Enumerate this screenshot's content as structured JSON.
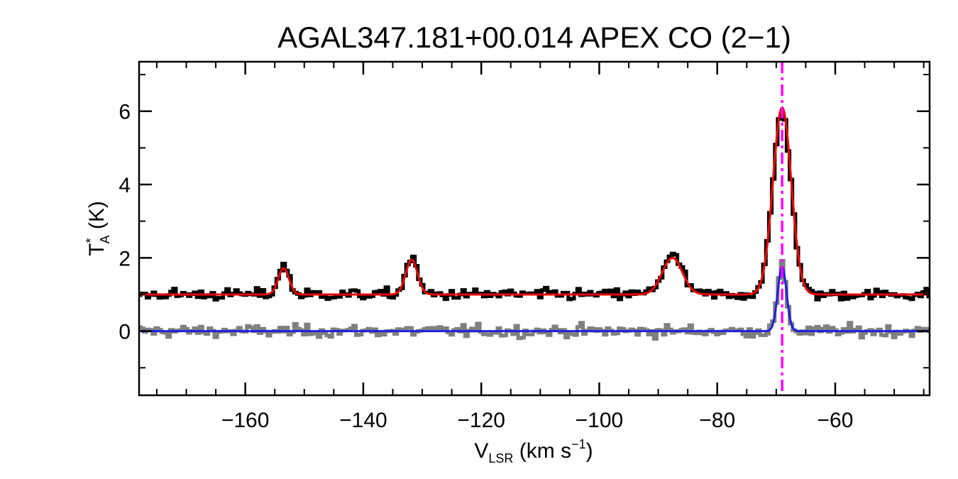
{
  "chart_data": {
    "type": "line",
    "title": "AGAL347.181+00.014  APEX CO (2−1)",
    "xlabel": {
      "main": "V",
      "sub": "LSR",
      "rest": " (km s",
      "sup": "−1",
      "end": ")"
    },
    "ylabel": {
      "main": "T",
      "sup": "*",
      "sub": "A",
      "rest": " (K)"
    },
    "xlim": [
      -178,
      -44
    ],
    "ylim": [
      -1.75,
      7.35
    ],
    "xticks": [
      -160,
      -140,
      -120,
      -100,
      -80,
      -60
    ],
    "xtick_labels": [
      "−160",
      "−140",
      "−120",
      "−100",
      "−80",
      "−60"
    ],
    "xminor_step": 5,
    "yticks": [
      0,
      2,
      4,
      6
    ],
    "ytick_labels": [
      "0",
      "2",
      "4",
      "6"
    ],
    "yminor_step": 1,
    "colors": {
      "observed": "#000000",
      "residual": "#808080",
      "total_fit": "#ee0000",
      "selected_component": "#2020dd",
      "velocity_marker": "#ff00ff"
    },
    "series": [
      {
        "name": "observed spectrum",
        "style": "histogram",
        "baseline": 1.0,
        "noise_rms": 0.12,
        "x_step": 0.5,
        "components": [
          {
            "center": -153.5,
            "amplitude": 0.8,
            "sigma": 0.9
          },
          {
            "center": -131.8,
            "amplitude": 1.0,
            "sigma": 1.0
          },
          {
            "center": -87.6,
            "amplitude": 1.05,
            "sigma": 1.7
          },
          {
            "center": -69.0,
            "amplitude": 5.0,
            "sigma": 1.55
          }
        ]
      },
      {
        "name": "total gaussian fit",
        "style": "line",
        "baseline": 1.0,
        "components": [
          {
            "center": -153.5,
            "amplitude": 0.72,
            "sigma": 0.9
          },
          {
            "center": -131.8,
            "amplitude": 0.95,
            "sigma": 1.0
          },
          {
            "center": -87.6,
            "amplitude": 1.0,
            "sigma": 1.7
          },
          {
            "center": -69.0,
            "amplitude": 5.1,
            "sigma": 1.55
          }
        ]
      },
      {
        "name": "residual spectrum",
        "style": "histogram",
        "baseline": 0.0,
        "noise_rms": 0.13,
        "x_step": 0.5,
        "components": [
          {
            "center": -69.0,
            "amplitude": 1.75,
            "sigma": 0.75
          }
        ]
      },
      {
        "name": "selected component fit",
        "style": "line",
        "baseline": 0.0,
        "components": [
          {
            "center": -69.0,
            "amplitude": 1.75,
            "sigma": 0.75
          }
        ]
      }
    ],
    "velocity_marker": -69.0
  }
}
